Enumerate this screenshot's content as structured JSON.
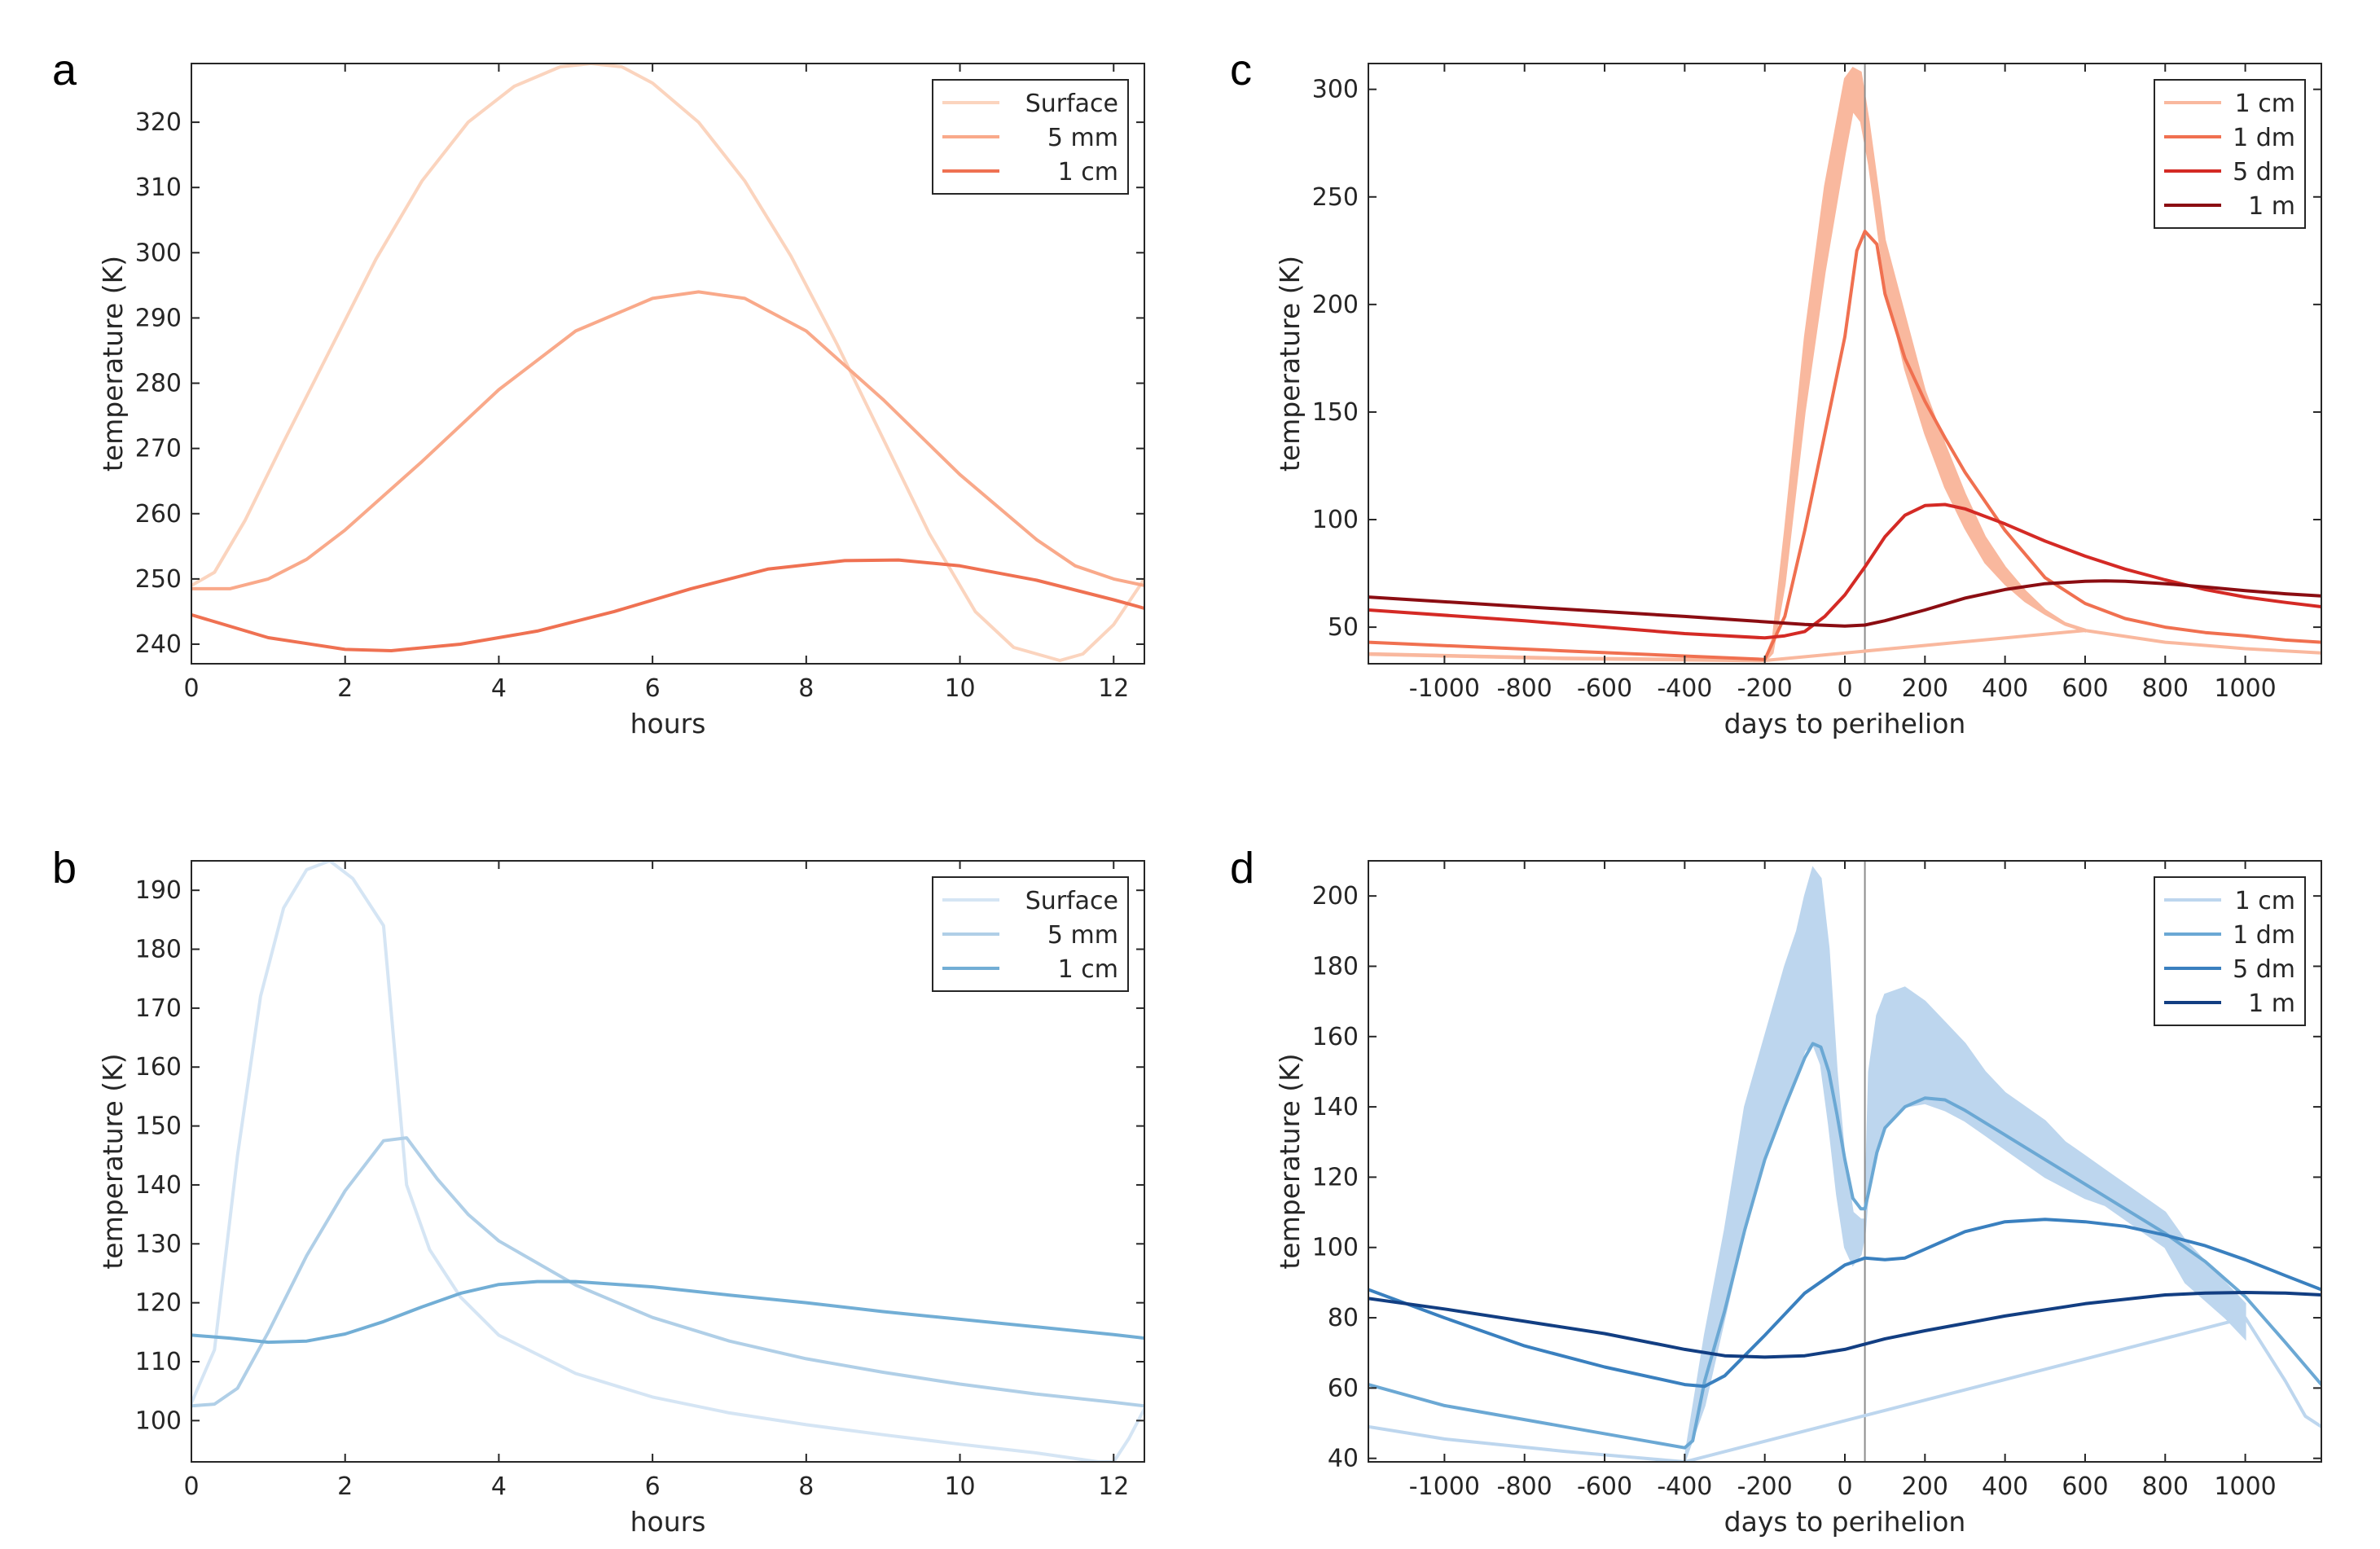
{
  "chart_data": [
    {
      "panel": "a",
      "type": "line",
      "xlabel": "hours",
      "ylabel": "temperature (K)",
      "xlim": [
        0,
        12.4
      ],
      "ylim": [
        237,
        329
      ],
      "xticks": [
        0,
        2,
        4,
        6,
        8,
        10,
        12
      ],
      "yticks": [
        240,
        250,
        260,
        270,
        280,
        290,
        300,
        310,
        320
      ],
      "legend_position": "top-right",
      "series": [
        {
          "name": "Surface",
          "color": "#fbd4be",
          "x": [
            0,
            0.3,
            0.7,
            1.2,
            1.8,
            2.4,
            3.0,
            3.6,
            4.2,
            4.8,
            5.2,
            5.6,
            6.0,
            6.6,
            7.2,
            7.8,
            8.4,
            9.0,
            9.6,
            10.2,
            10.7,
            11.0,
            11.3,
            11.6,
            12.0,
            12.4
          ],
          "y": [
            249,
            251,
            259,
            271,
            285,
            299,
            311,
            320,
            325.5,
            328.5,
            329,
            328.5,
            326,
            320,
            311,
            299.5,
            286,
            271.5,
            257,
            245,
            239.5,
            238.5,
            237.5,
            238.5,
            243,
            250
          ]
        },
        {
          "name": "5 mm",
          "color": "#f9a98a",
          "x": [
            0,
            0.5,
            1.0,
            1.5,
            2.0,
            3.0,
            4.0,
            5.0,
            6.0,
            6.6,
            7.2,
            8.0,
            9.0,
            10.0,
            11.0,
            11.5,
            12.0,
            12.4
          ],
          "y": [
            248.5,
            248.5,
            250,
            253,
            257.5,
            268,
            279,
            288,
            293,
            294,
            293,
            288,
            277.5,
            266,
            256,
            252,
            250,
            249
          ]
        },
        {
          "name": "1 cm",
          "color": "#ef7152",
          "x": [
            0,
            1,
            2,
            2.6,
            3.5,
            4.5,
            5.5,
            6.5,
            7.5,
            8.5,
            9.2,
            10,
            11,
            12,
            12.4
          ],
          "y": [
            244.5,
            241,
            239.2,
            239,
            240,
            242,
            245,
            248.5,
            251.5,
            252.8,
            252.9,
            252,
            249.8,
            246.8,
            245.5
          ]
        }
      ]
    },
    {
      "panel": "b",
      "type": "line",
      "xlabel": "hours",
      "ylabel": "temperature (K)",
      "xlim": [
        0,
        12.4
      ],
      "ylim": [
        93,
        195
      ],
      "xticks": [
        0,
        2,
        4,
        6,
        8,
        10,
        12
      ],
      "yticks": [
        100,
        110,
        120,
        130,
        140,
        150,
        160,
        170,
        180,
        190
      ],
      "legend_position": "top-right",
      "series": [
        {
          "name": "Surface",
          "color": "#d5e5f4",
          "x": [
            0,
            0.3,
            0.6,
            0.9,
            1.2,
            1.5,
            1.8,
            2.1,
            2.5,
            2.8,
            3.1,
            3.5,
            4.0,
            5.0,
            6.0,
            7.0,
            8.0,
            9.0,
            10.0,
            11.0,
            11.8,
            12.0,
            12.2,
            12.4
          ],
          "y": [
            103,
            112,
            145,
            172,
            187,
            193.5,
            195,
            192,
            184,
            140,
            129,
            121,
            114.5,
            108,
            104,
            101.3,
            99.3,
            97.6,
            96,
            94.5,
            93,
            93,
            97,
            102
          ]
        },
        {
          "name": "5 mm",
          "color": "#b0cfe7",
          "x": [
            0,
            0.3,
            0.6,
            1.0,
            1.5,
            2.0,
            2.5,
            2.8,
            3.2,
            3.6,
            4.0,
            5.0,
            6.0,
            7.0,
            8.0,
            9.0,
            10.0,
            11.0,
            12.0,
            12.4
          ],
          "y": [
            102.5,
            102.8,
            105.5,
            115,
            128,
            139,
            147.5,
            148,
            141,
            135,
            130.5,
            123,
            117.5,
            113.5,
            110.5,
            108.2,
            106.2,
            104.5,
            103.1,
            102.5
          ]
        },
        {
          "name": "1 cm",
          "color": "#72aed5",
          "x": [
            0,
            0.5,
            1.0,
            1.5,
            2.0,
            2.5,
            3.0,
            3.5,
            4.0,
            4.5,
            5.0,
            6.0,
            7.0,
            8.0,
            9.0,
            10.0,
            11.0,
            12.0,
            12.4
          ],
          "y": [
            114.5,
            114,
            113.3,
            113.5,
            114.7,
            116.8,
            119.3,
            121.6,
            123.1,
            123.6,
            123.6,
            122.7,
            121.3,
            120,
            118.5,
            117.2,
            115.9,
            114.6,
            114
          ]
        }
      ]
    },
    {
      "panel": "c",
      "type": "line",
      "xlabel": "days to perihelion",
      "ylabel": "temperature (K)",
      "xlim": [
        -1190,
        1190
      ],
      "ylim": [
        33,
        312
      ],
      "xticks": [
        -1000,
        -800,
        -600,
        -400,
        -200,
        0,
        200,
        400,
        600,
        800,
        1000
      ],
      "yticks": [
        50,
        100,
        150,
        200,
        250,
        300
      ],
      "vline_x": 50,
      "legend_position": "top-right",
      "bands": [
        {
          "series": "1 cm",
          "color": "#f9b89e",
          "x": [
            -1190,
            -700,
            -200,
            -180,
            -150,
            -100,
            -50,
            0,
            20,
            40,
            60,
            100,
            150,
            200,
            250,
            300,
            350,
            400,
            450,
            500,
            550,
            600
          ],
          "upper": [
            38,
            36,
            35,
            45,
            95,
            185,
            255,
            305,
            310,
            308,
            285,
            230,
            195,
            160,
            135,
            112,
            92,
            78,
            67,
            58,
            52,
            49
          ],
          "lower": [
            37,
            35,
            34,
            38,
            70,
            150,
            215,
            270,
            290,
            285,
            265,
            210,
            170,
            140,
            115,
            96,
            80,
            70,
            62,
            56,
            51,
            48
          ]
        }
      ],
      "series": [
        {
          "name": "1 cm",
          "color": "#f9b89e",
          "x": [
            -1190,
            -700,
            -200,
            600,
            800,
            1000,
            1190
          ],
          "y": [
            37.5,
            35.5,
            34.5,
            48.5,
            43,
            40,
            38
          ]
        },
        {
          "name": "1 dm",
          "color": "#f07050",
          "x": [
            -1190,
            -700,
            -200,
            -150,
            -100,
            -50,
            0,
            30,
            50,
            80,
            100,
            150,
            200,
            250,
            300,
            400,
            500,
            600,
            700,
            800,
            900,
            1000,
            1100,
            1190
          ],
          "y": [
            43,
            39,
            35,
            55,
            95,
            140,
            185,
            225,
            234,
            228,
            205,
            175,
            155,
            138,
            122,
            95,
            73,
            61,
            54,
            50,
            47.5,
            46,
            44,
            43
          ]
        },
        {
          "name": "5 dm",
          "color": "#d42a25",
          "x": [
            -1190,
            -800,
            -400,
            -200,
            -150,
            -100,
            -50,
            0,
            50,
            100,
            150,
            200,
            250,
            300,
            400,
            500,
            600,
            700,
            800,
            900,
            1000,
            1100,
            1190
          ],
          "y": [
            58,
            53,
            47,
            45,
            46,
            48,
            55,
            65,
            78,
            92,
            102,
            106.5,
            107,
            105,
            98,
            90,
            83,
            77,
            72,
            67.5,
            64,
            61.5,
            59.5
          ]
        },
        {
          "name": "1 m",
          "color": "#8b0d12",
          "x": [
            -1190,
            -800,
            -400,
            -200,
            -100,
            0,
            50,
            100,
            200,
            300,
            400,
            500,
            600,
            650,
            700,
            800,
            900,
            1000,
            1100,
            1190
          ],
          "y": [
            64,
            59.5,
            55,
            52.5,
            51.3,
            50.5,
            51,
            53,
            58,
            63.5,
            67.5,
            70.2,
            71.3,
            71.5,
            71.3,
            70.2,
            68.7,
            67,
            65.5,
            64.5
          ]
        }
      ]
    },
    {
      "panel": "d",
      "type": "line",
      "xlabel": "days to perihelion",
      "ylabel": "temperature (K)",
      "xlim": [
        -1190,
        1190
      ],
      "ylim": [
        39,
        210
      ],
      "xticks": [
        -1000,
        -800,
        -600,
        -400,
        -200,
        0,
        200,
        400,
        600,
        800,
        1000
      ],
      "yticks": [
        40,
        60,
        80,
        100,
        120,
        140,
        160,
        180,
        200
      ],
      "vline_x": 50,
      "legend_position": "top-right",
      "bands": [
        {
          "series": "1 cm",
          "color": "#bdd6ee",
          "x": [
            -400,
            -350,
            -300,
            -250,
            -200,
            -150,
            -120,
            -100,
            -80,
            -60,
            -40,
            -20,
            0,
            20,
            40,
            50,
            60,
            80,
            100,
            150,
            200,
            250,
            300,
            350,
            400,
            450,
            500,
            550,
            600,
            650,
            700,
            750,
            800,
            850,
            900,
            950,
            1000
          ],
          "upper": [
            40,
            75,
            105,
            140,
            160,
            180,
            190,
            200,
            208,
            205,
            185,
            150,
            125,
            110,
            108,
            108,
            150,
            166,
            172,
            174,
            170,
            164,
            158,
            150,
            144,
            140,
            136,
            130,
            126,
            122,
            118,
            114,
            110,
            102,
            96,
            90,
            84
          ],
          "lower": [
            39,
            55,
            80,
            105,
            125,
            140,
            150,
            156,
            158,
            152,
            135,
            115,
            100,
            95,
            98,
            104,
            118,
            128,
            135,
            140,
            141,
            139,
            136,
            132,
            128,
            124,
            120,
            117,
            114,
            112,
            108,
            104,
            100,
            90,
            85,
            80,
            74
          ]
        }
      ],
      "series": [
        {
          "name": "1 cm",
          "color": "#bdd6ee",
          "x": [
            -1190,
            -1000,
            -700,
            -400,
            1000,
            1100,
            1150,
            1190
          ],
          "y": [
            49,
            45.5,
            42,
            39,
            80,
            62,
            52,
            49
          ]
        },
        {
          "name": "1 dm",
          "color": "#6ba8d4",
          "x": [
            -1190,
            -1000,
            -700,
            -400,
            -380,
            -350,
            -300,
            -250,
            -200,
            -150,
            -100,
            -80,
            -60,
            -40,
            -20,
            0,
            20,
            40,
            50,
            60,
            80,
            100,
            150,
            200,
            250,
            300,
            400,
            500,
            600,
            700,
            800,
            900,
            1000,
            1100,
            1190
          ],
          "y": [
            61,
            55,
            49,
            43,
            45,
            62,
            82,
            105,
            125,
            140,
            154,
            158,
            157,
            150,
            138,
            125,
            114,
            111,
            111,
            116,
            127,
            134,
            140,
            142.5,
            142,
            139,
            132,
            125,
            118,
            111,
            104,
            96,
            86,
            73,
            61
          ]
        },
        {
          "name": "5 dm",
          "color": "#3a80bf",
          "x": [
            -1190,
            -1000,
            -800,
            -600,
            -400,
            -350,
            -300,
            -200,
            -100,
            0,
            50,
            100,
            150,
            200,
            300,
            400,
            500,
            600,
            700,
            800,
            900,
            1000,
            1100,
            1190
          ],
          "y": [
            88,
            80,
            72,
            66,
            61,
            60.5,
            63.5,
            75,
            87,
            95,
            97,
            96.5,
            97,
            99.5,
            104.5,
            107.3,
            108,
            107.3,
            106,
            103.5,
            100.5,
            96.5,
            92,
            88
          ]
        },
        {
          "name": "1 m",
          "color": "#123e82",
          "x": [
            -1190,
            -1000,
            -800,
            -600,
            -400,
            -300,
            -200,
            -100,
            0,
            50,
            100,
            200,
            400,
            600,
            800,
            900,
            1000,
            1100,
            1190
          ],
          "y": [
            85.5,
            82.5,
            79,
            75.5,
            71,
            69.2,
            68.8,
            69.2,
            71,
            72.5,
            74,
            76.3,
            80.5,
            84,
            86.5,
            87,
            87.2,
            87,
            86.5
          ]
        }
      ]
    }
  ]
}
